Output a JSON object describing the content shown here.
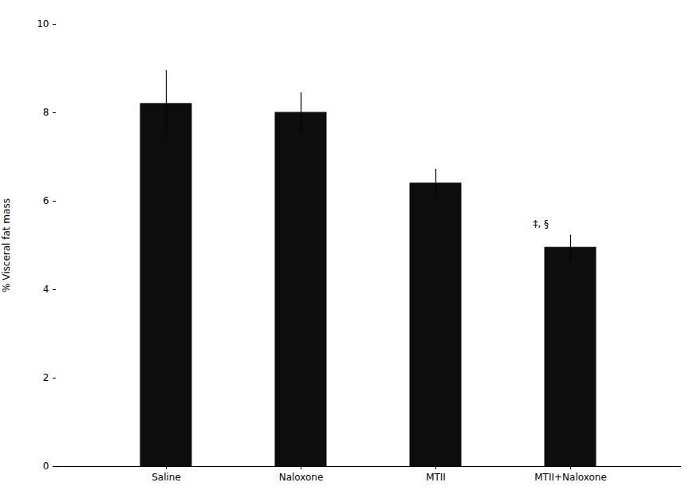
{
  "chart_data": {
    "type": "bar",
    "categories": [
      "Saline",
      "Naloxone",
      "MTII",
      "MTII+Naloxone"
    ],
    "values": [
      8.2,
      8.0,
      6.4,
      4.95
    ],
    "errors": [
      0.75,
      0.45,
      0.32,
      0.28
    ],
    "color": "#0d0d0d",
    "ylabel": "% Visceral fat mass",
    "ylim": [
      0,
      10
    ],
    "yticks": [
      0,
      2,
      4,
      6,
      8,
      10
    ],
    "grid": false,
    "annotations": [
      {
        "text": "‡, §",
        "category": "MTII+Naloxone"
      }
    ]
  }
}
